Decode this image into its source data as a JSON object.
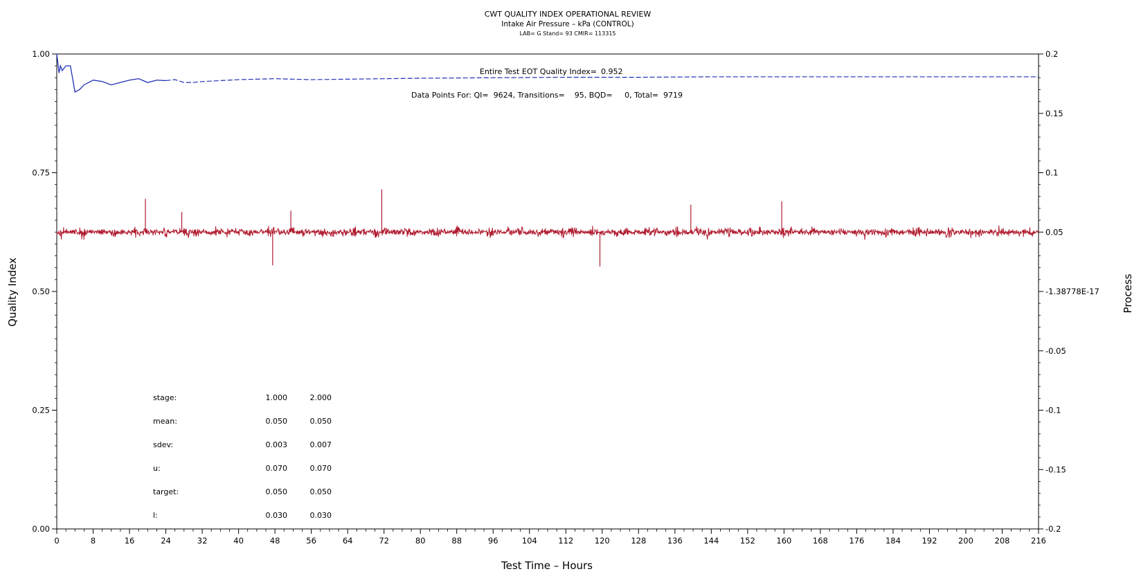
{
  "chart_data": {
    "type": "line",
    "title": "CWT QUALITY INDEX OPERATIONAL REVIEW",
    "subtitle": "Intake Air Pressure – kPa (CONTROL)",
    "subtitle2": "LAB= G Stand= 93 CMIR= 113315",
    "xlabel": "Test Time – Hours",
    "ylabel_left": "Quality Index",
    "ylabel_right": "Process",
    "xlim": [
      0,
      216
    ],
    "ylim_left": [
      0,
      1
    ],
    "ylim_right": [
      -0.2,
      0.2
    ],
    "x_ticks": [
      "0",
      "8",
      "16",
      "24",
      "32",
      "40",
      "48",
      "56",
      "64",
      "72",
      "80",
      "88",
      "96",
      "104",
      "112",
      "120",
      "128",
      "136",
      "144",
      "152",
      "160",
      "168",
      "176",
      "184",
      "192",
      "200",
      "208",
      "216"
    ],
    "y_left_ticks": [
      "0.00",
      "0.25",
      "0.50",
      "0.75",
      "1.00"
    ],
    "y_right_ticks": [
      "-0.2",
      "-0.15",
      "-0.1",
      "-0.05",
      "-1.38778E-17",
      "0.05",
      "0.1",
      "0.15",
      "0.2"
    ],
    "annotations": {
      "eot_label": "Entire Test EOT Quality Index=",
      "eot_value": "0.952",
      "points_line": "Data Points For: QI=  9624, Transitions=    95, BQD=     0, Total=  9719"
    },
    "stats": {
      "rows": [
        {
          "label": "stage:",
          "v1": "1.000",
          "v2": "2.000"
        },
        {
          "label": "mean:",
          "v1": "0.050",
          "v2": "0.050"
        },
        {
          "label": "sdev:",
          "v1": "0.003",
          "v2": "0.007"
        },
        {
          "label": "u:",
          "v1": "0.070",
          "v2": "0.070"
        },
        {
          "label": "target:",
          "v1": "0.050",
          "v2": "0.050"
        },
        {
          "label": "l:",
          "v1": "0.030",
          "v2": "0.030"
        }
      ]
    },
    "series": [
      {
        "name": "",
        "axis": "left",
        "color": "#1f2fb5",
        "style": "solid-then-dashed",
        "x": [
          0,
          0.5,
          0.8,
          1.2,
          2,
          3,
          4,
          5,
          6,
          7,
          8,
          10,
          12,
          14,
          16,
          18,
          20,
          22,
          24,
          26,
          28,
          30,
          32,
          40,
          48,
          56,
          64,
          72,
          80,
          96,
          112,
          128,
          144,
          160,
          176,
          192,
          216
        ],
        "y": [
          1.0,
          0.96,
          0.975,
          0.965,
          0.975,
          0.975,
          0.92,
          0.925,
          0.935,
          0.94,
          0.945,
          0.942,
          0.935,
          0.94,
          0.945,
          0.948,
          0.94,
          0.945,
          0.944,
          0.946,
          0.94,
          0.94,
          0.942,
          0.946,
          0.948,
          0.946,
          0.947,
          0.948,
          0.949,
          0.95,
          0.951,
          0.951,
          0.952,
          0.952,
          0.952,
          0.952,
          0.952
        ]
      },
      {
        "name": "",
        "axis": "right",
        "color": "#b01a2e",
        "style": "noise",
        "target": 0.05,
        "typical_amplitude": 0.007,
        "spikes": [
          {
            "x": 19.5,
            "y": 0.078
          },
          {
            "x": 71.5,
            "y": 0.086
          },
          {
            "x": 159.5,
            "y": 0.076
          },
          {
            "x": 47.5,
            "y": 0.022
          },
          {
            "x": 119.5,
            "y": 0.021
          },
          {
            "x": 139.5,
            "y": 0.073
          },
          {
            "x": 51.5,
            "y": 0.068
          },
          {
            "x": 27.5,
            "y": 0.067
          }
        ]
      }
    ],
    "colors": {
      "qi_line": "#1f2fb5",
      "process_line": "#b01a2e",
      "axes": "#000000"
    }
  }
}
